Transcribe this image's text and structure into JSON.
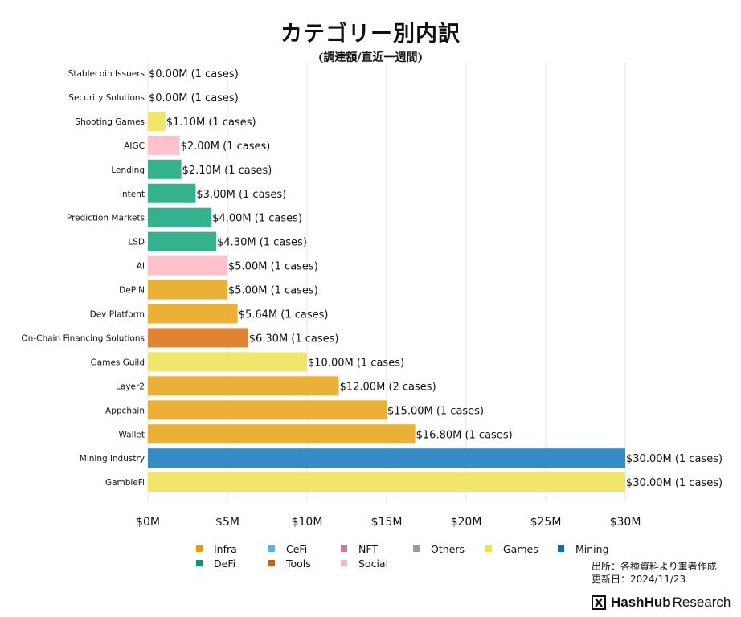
{
  "header": {
    "title": "カテゴリー別内訳",
    "subtitle": "(調達額/直近一週間)"
  },
  "chart_data": {
    "type": "bar",
    "orientation": "horizontal",
    "title": "カテゴリー別内訳",
    "subtitle": "(調達額/直近一週間)",
    "categories": [
      "Stablecoin Issuers",
      "Security Solutions",
      "Shooting Games",
      "AIGC",
      "Lending",
      "Intent",
      "Prediction Markets",
      "LSD",
      "AI",
      "DePIN",
      "Dev Platform",
      "On-Chain Financing Solutions",
      "Games Guild",
      "Layer2",
      "Appchain",
      "Wallet",
      "Mining industry",
      "GambleFi"
    ],
    "values": [
      0.0,
      0.0,
      1.1,
      2.0,
      2.1,
      3.0,
      4.0,
      4.3,
      5.0,
      5.0,
      5.64,
      6.3,
      10.0,
      12.0,
      15.0,
      16.8,
      30.0,
      30.0
    ],
    "groups": [
      "DeFi",
      "Infra",
      "Games",
      "Social",
      "DeFi",
      "DeFi",
      "DeFi",
      "DeFi",
      "Social",
      "Infra",
      "Infra",
      "Tools",
      "Games",
      "Infra",
      "Infra",
      "Infra",
      "Mining",
      "Games"
    ],
    "labels": [
      "$0.00M (1 cases)",
      "$0.00M (1 cases)",
      "$1.10M (1 cases)",
      "$2.00M (1 cases)",
      "$2.10M (1 cases)",
      "$3.00M (1 cases)",
      "$4.00M (1 cases)",
      "$4.30M (1 cases)",
      "$5.00M (1 cases)",
      "$5.00M (1 cases)",
      "$5.64M (1 cases)",
      "$6.30M (1 cases)",
      "$10.00M (1 cases)",
      "$12.00M (2 cases)",
      "$15.00M (1 cases)",
      "$16.80M (1 cases)",
      "$30.00M (1 cases)",
      "$30.00M (1 cases)"
    ],
    "xlim": [
      0,
      30
    ],
    "xticks": [
      0,
      5,
      10,
      15,
      20,
      25,
      30
    ],
    "xtick_labels": [
      "$0M",
      "$5M",
      "$10M",
      "$15M",
      "$20M",
      "$25M",
      "$30M"
    ],
    "xlabel": "",
    "ylabel": "",
    "grid": "vertical",
    "legend_position": "bottom"
  },
  "legend": [
    {
      "name": "Infra",
      "color": "#E69F00"
    },
    {
      "name": "CeFi",
      "color": "#56B4E9"
    },
    {
      "name": "NFT",
      "color": "#CC79A7"
    },
    {
      "name": "Others",
      "color": "#999999"
    },
    {
      "name": "Games",
      "color": "#F0E442"
    },
    {
      "name": "Mining",
      "color": "#0072B2"
    },
    {
      "name": "DeFi",
      "color": "#009E73"
    },
    {
      "name": "Tools",
      "color": "#D55E00"
    },
    {
      "name": "Social",
      "color": "#FFB6C1"
    }
  ],
  "colors": {
    "Infra": "#EBB136",
    "Games": "#F1E66C",
    "DeFi": "#34B28E",
    "Social": "#FFC2CD",
    "Tools": "#E08332",
    "Mining": "#348BC5",
    "grid": "#e6e6e6"
  },
  "footer": {
    "source_line": "出所：各種資料より筆者作成",
    "updated_line": "更新日：2024/11/23",
    "brand_name": "HashHub",
    "brand_suffix": "Research"
  }
}
